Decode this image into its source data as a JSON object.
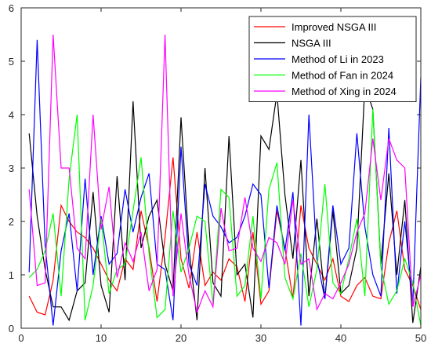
{
  "chart_data": {
    "type": "line",
    "title": "",
    "xlabel": "",
    "ylabel": "",
    "xlim": [
      0,
      50
    ],
    "ylim": [
      0,
      6
    ],
    "xticks": [
      0,
      10,
      20,
      30,
      40,
      50
    ],
    "yticks": [
      0,
      1,
      2,
      3,
      4,
      5,
      6
    ],
    "grid": false,
    "legend_position": "top-right",
    "x": [
      1,
      2,
      3,
      4,
      5,
      6,
      7,
      8,
      9,
      10,
      11,
      12,
      13,
      14,
      15,
      16,
      17,
      18,
      19,
      20,
      21,
      22,
      23,
      24,
      25,
      26,
      27,
      28,
      29,
      30,
      31,
      32,
      33,
      34,
      35,
      36,
      37,
      38,
      39,
      40,
      41,
      42,
      43,
      44,
      45,
      46,
      47,
      48,
      49,
      50
    ],
    "series": [
      {
        "name": "Improved NSGA III",
        "color": "#ff0000",
        "values": [
          0.6,
          0.3,
          0.25,
          0.9,
          2.3,
          2.0,
          1.8,
          1.7,
          1.5,
          1.2,
          0.9,
          0.7,
          1.3,
          1.1,
          2.2,
          1.5,
          0.5,
          1.7,
          3.2,
          1.3,
          0.75,
          1.8,
          0.8,
          1.05,
          0.9,
          1.3,
          1.15,
          0.5,
          1.8,
          0.45,
          0.7,
          2.2,
          1.5,
          0.55,
          2.3,
          1.5,
          1.2,
          0.9,
          1.3,
          0.6,
          0.5,
          0.8,
          0.95,
          0.6,
          0.55,
          1.6,
          2.2,
          1.1,
          0.8,
          0.35
        ]
      },
      {
        "name": "NSGA III",
        "color": "#000000",
        "values": [
          3.65,
          2.1,
          1.1,
          0.4,
          0.4,
          0.15,
          0.7,
          0.85,
          2.55,
          0.8,
          0.3,
          2.85,
          0.9,
          4.25,
          1.5,
          2.1,
          2.4,
          1.2,
          0.7,
          3.95,
          1.5,
          0.15,
          3.0,
          0.85,
          0.6,
          3.6,
          1.0,
          1.2,
          0.2,
          3.6,
          3.35,
          4.4,
          2.5,
          1.3,
          3.15,
          0.6,
          2.05,
          0.55,
          2.2,
          0.65,
          0.8,
          1.5,
          4.55,
          4.1,
          1.2,
          2.9,
          1.0,
          2.4,
          0.1,
          1.15
        ]
      },
      {
        "name": "Method of Li in 2023",
        "color": "#0000ff",
        "values": [
          1.05,
          5.4,
          1.55,
          0.05,
          1.45,
          2.15,
          0.7,
          2.8,
          1.0,
          2.1,
          1.2,
          1.4,
          2.6,
          1.8,
          2.45,
          2.9,
          1.2,
          1.1,
          0.15,
          3.4,
          1.2,
          0.8,
          2.7,
          2.1,
          1.9,
          1.6,
          1.7,
          2.1,
          2.7,
          2.5,
          0.75,
          2.3,
          1.45,
          2.55,
          0.05,
          4.0,
          1.3,
          0.55,
          2.3,
          1.2,
          1.5,
          3.65,
          1.9,
          1.0,
          0.6,
          3.75,
          0.65,
          2.0,
          0.45,
          4.7
        ]
      },
      {
        "name": "Method of Fan in 2024",
        "color": "#00ff00",
        "values": [
          0.95,
          1.1,
          1.45,
          2.15,
          0.6,
          2.8,
          4.0,
          0.15,
          0.8,
          2.05,
          0.65,
          1.1,
          1.2,
          2.2,
          3.2,
          1.4,
          0.2,
          0.35,
          2.2,
          1.05,
          1.5,
          2.1,
          2.0,
          0.45,
          2.6,
          2.45,
          0.6,
          0.8,
          2.1,
          0.55,
          2.6,
          3.1,
          0.95,
          0.55,
          1.4,
          0.4,
          1.1,
          2.7,
          0.85,
          0.65,
          1.3,
          2.05,
          0.6,
          4.1,
          1.15,
          0.45,
          0.7,
          1.3,
          0.85,
          0.05
        ]
      },
      {
        "name": "Method of Xing in 2024",
        "color": "#ff00ff",
        "values": [
          2.6,
          0.8,
          0.85,
          5.5,
          3.0,
          3.0,
          1.5,
          1.3,
          4.0,
          1.85,
          2.65,
          0.95,
          1.6,
          1.25,
          1.8,
          0.7,
          1.1,
          5.5,
          0.6,
          2.15,
          1.0,
          0.3,
          0.7,
          0.4,
          2.25,
          1.45,
          1.5,
          2.45,
          1.5,
          1.25,
          1.7,
          1.6,
          1.2,
          2.4,
          1.2,
          1.3,
          0.35,
          0.65,
          0.55,
          0.85,
          1.2,
          1.8,
          2.15,
          3.55,
          2.4,
          3.55,
          3.15,
          3.0,
          0.4,
          1.0
        ]
      }
    ]
  }
}
